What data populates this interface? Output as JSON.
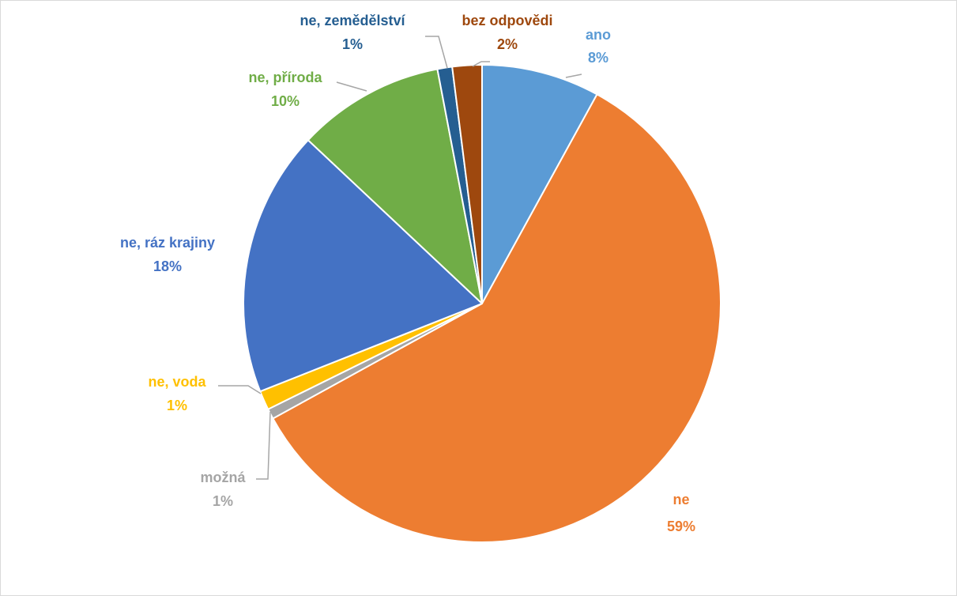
{
  "chart_data": {
    "type": "pie",
    "title": "",
    "slices": [
      {
        "label": "ano",
        "value": 8,
        "percent_text": "8%",
        "color": "#5b9bd5"
      },
      {
        "label": "ne",
        "value": 59,
        "percent_text": "59%",
        "color": "#ed7d31"
      },
      {
        "label": "možná",
        "value": 0.7,
        "percent_text": "1%",
        "color": "#a5a5a5"
      },
      {
        "label": "ne, voda",
        "value": 1.3,
        "percent_text": "1%",
        "color": "#ffc000"
      },
      {
        "label": "ne, ráz krajiny",
        "value": 18,
        "percent_text": "18%",
        "color": "#4472c4"
      },
      {
        "label": "ne, příroda",
        "value": 10,
        "percent_text": "10%",
        "color": "#70ad47"
      },
      {
        "label": "ne, zemědělství",
        "value": 1,
        "percent_text": "1%",
        "color": "#255e91"
      },
      {
        "label": "bez odpovědi",
        "value": 2,
        "percent_text": "2%",
        "color": "#9e480e"
      }
    ],
    "legend": "none",
    "labels_outside": true
  }
}
